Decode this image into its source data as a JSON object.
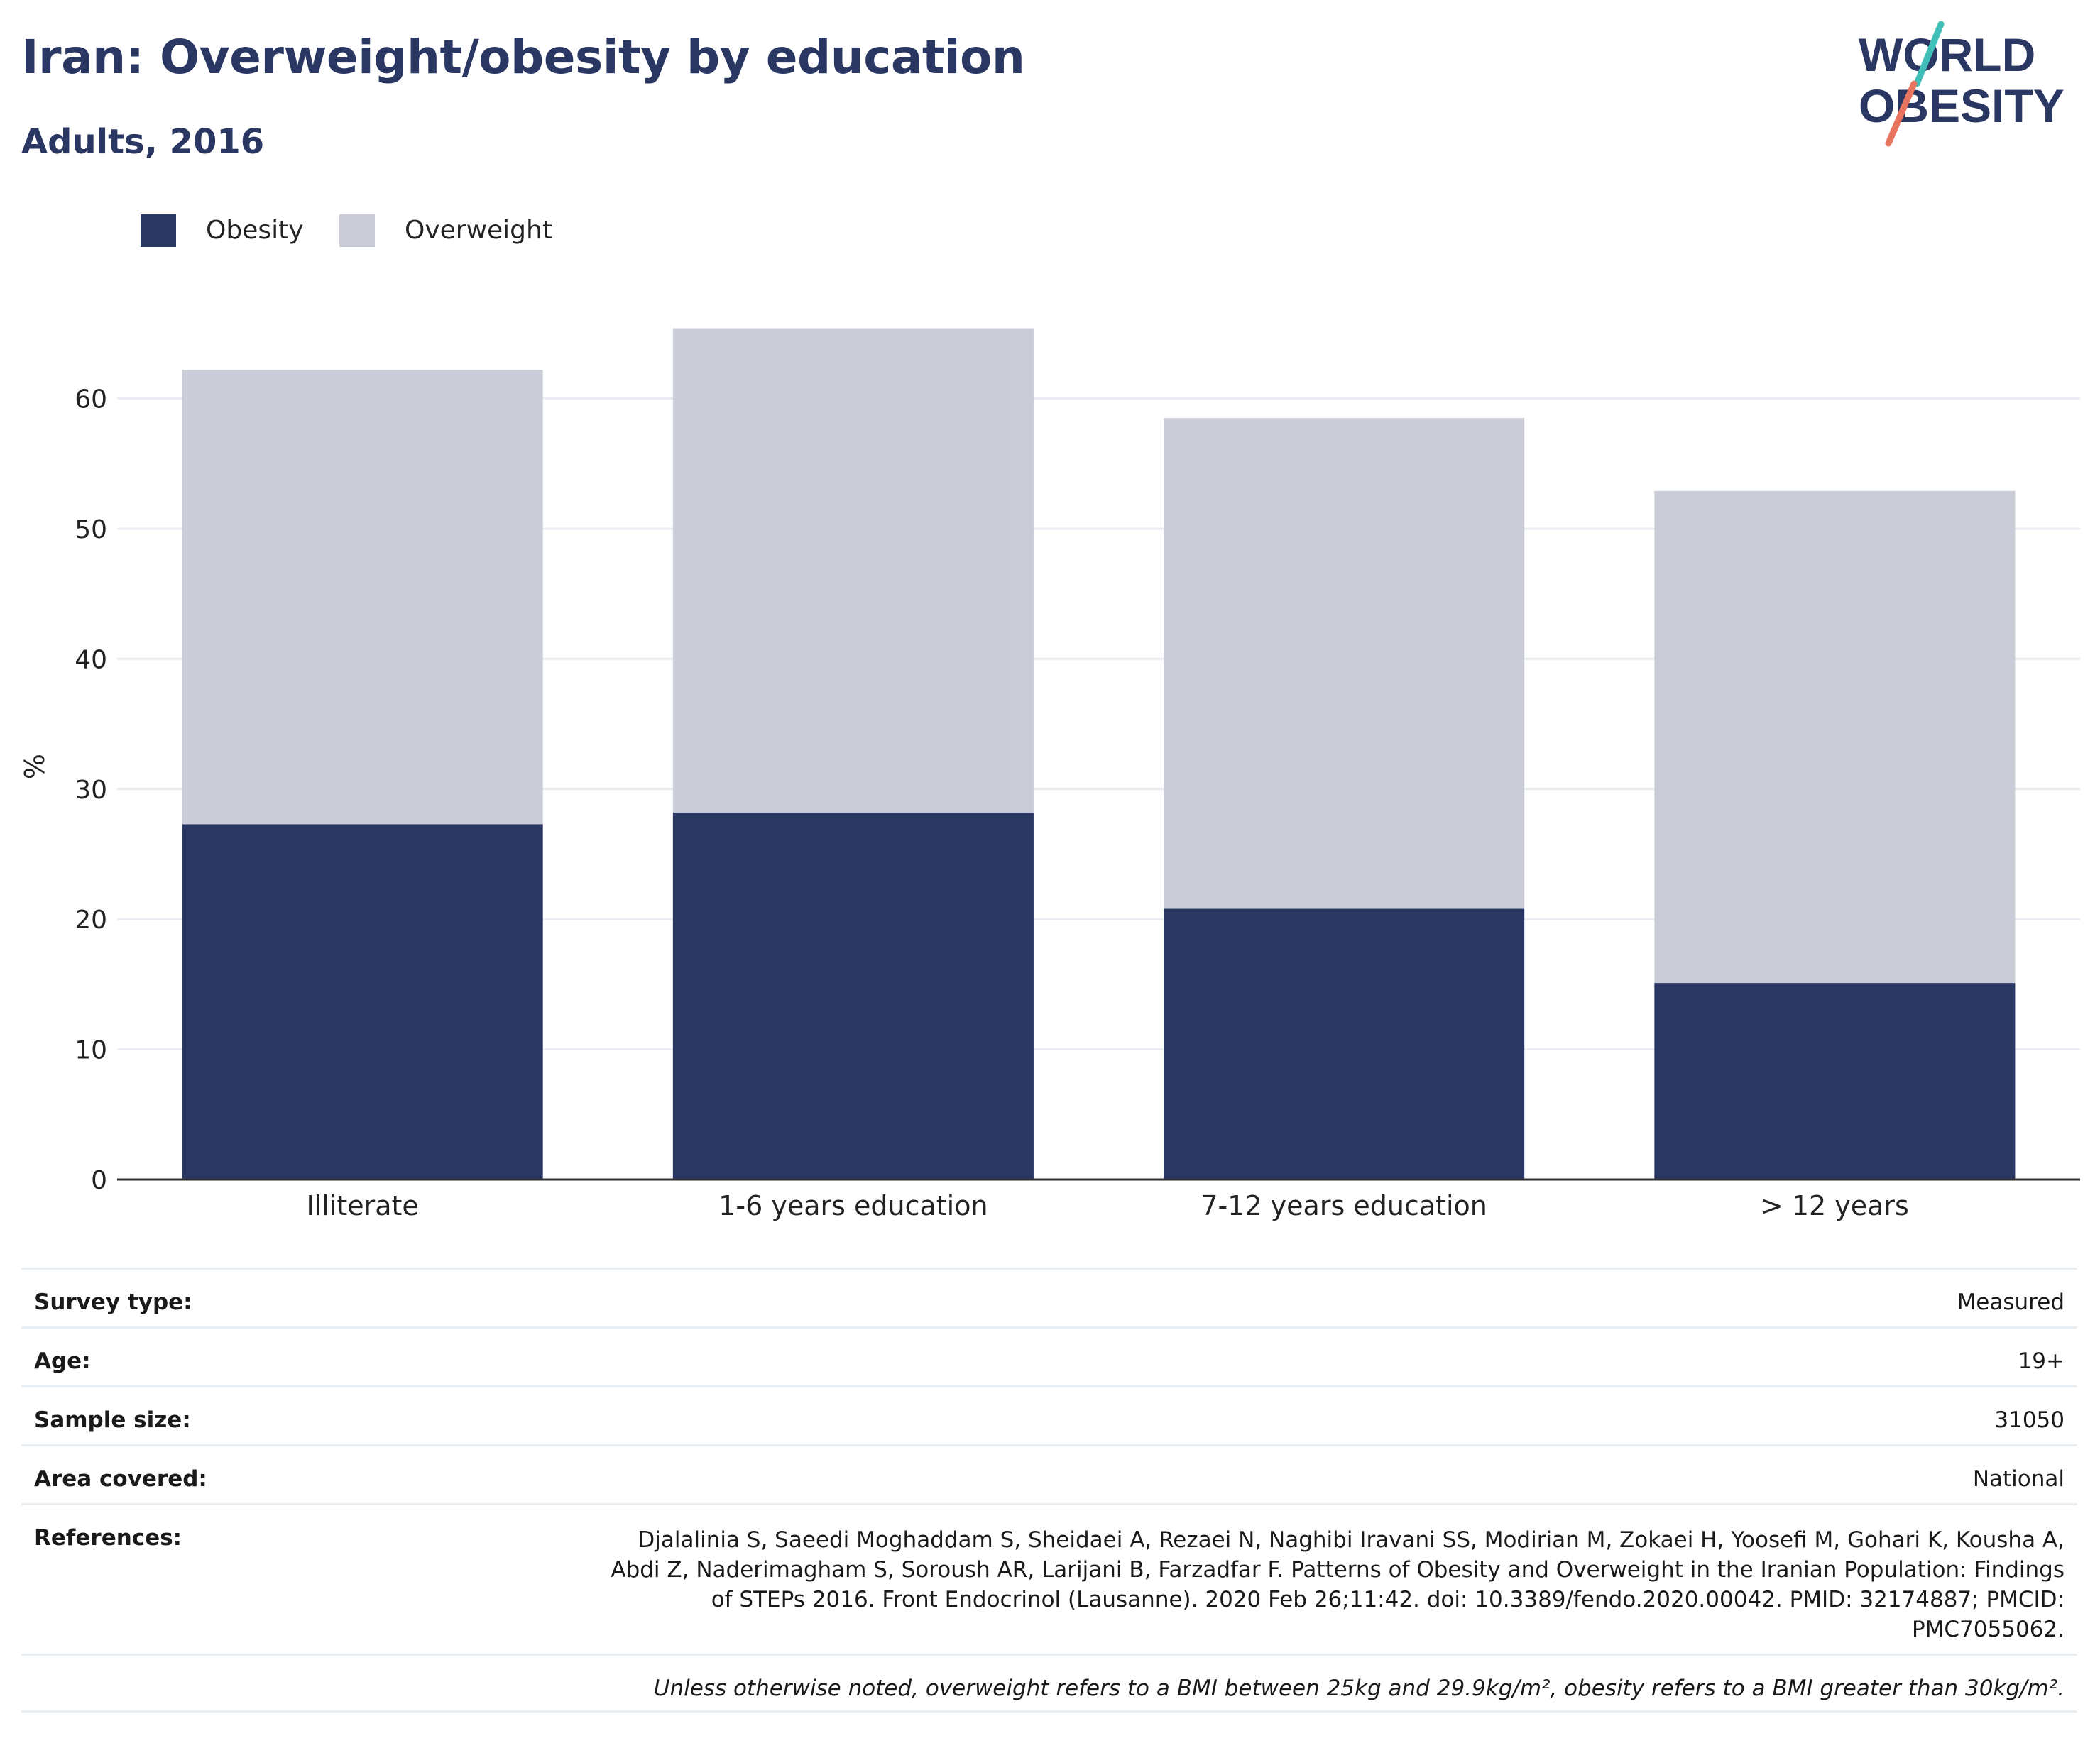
{
  "header": {
    "title": "Iran: Overweight/obesity by education",
    "subtitle": "Adults, 2016"
  },
  "logo": {
    "line1": "WORLD",
    "line2": "OBESITY",
    "colors": {
      "text": "#2a3762",
      "teal": "#3fbfb8",
      "coral": "#e8735f"
    }
  },
  "colors": {
    "obesity": "#2a3762",
    "overweight": "#caccd8",
    "grid": "#e9ecf1",
    "axis": "#333333"
  },
  "chart_data": {
    "type": "bar",
    "stacked": true,
    "categories": [
      "Illiterate",
      "1-6 years education",
      "7-12 years education",
      "> 12 years"
    ],
    "series": [
      {
        "name": "Obesity",
        "values": [
          27.3,
          28.2,
          20.8,
          15.1
        ],
        "color": "#2a3762"
      },
      {
        "name": "Overweight",
        "values": [
          34.9,
          37.2,
          37.7,
          37.8
        ],
        "color": "#caccd8"
      }
    ],
    "ylabel": "%",
    "xlabel": "",
    "ylim": [
      0,
      69.9
    ],
    "yticks": [
      0,
      10,
      20,
      30,
      40,
      50,
      60
    ],
    "grid": true,
    "legend_position": "top-left"
  },
  "meta": [
    {
      "label": "Survey type:",
      "value": "Measured"
    },
    {
      "label": "Age:",
      "value": "19+"
    },
    {
      "label": "Sample size:",
      "value": "31050"
    },
    {
      "label": "Area covered:",
      "value": "National"
    },
    {
      "label": "References:",
      "value": "Djalalinia S, Saeedi Moghaddam S, Sheidaei A, Rezaei N, Naghibi Iravani SS, Modirian M, Zokaei H, Yoosefi M, Gohari K, Kousha A, Abdi Z, Naderimagham S, Soroush AR, Larijani B, Farzadfar F. Patterns of Obesity and Overweight in the Iranian Population: Findings of STEPs 2016. Front Endocrinol (Lausanne). 2020 Feb 26;11:42. doi: 10.3389/fendo.2020.00042. PMID: 32174887; PMCID: PMC7055062."
    }
  ],
  "footnote": "Unless otherwise noted, overweight refers to a BMI between 25kg and 29.9kg/m², obesity refers to a BMI greater than 30kg/m²."
}
